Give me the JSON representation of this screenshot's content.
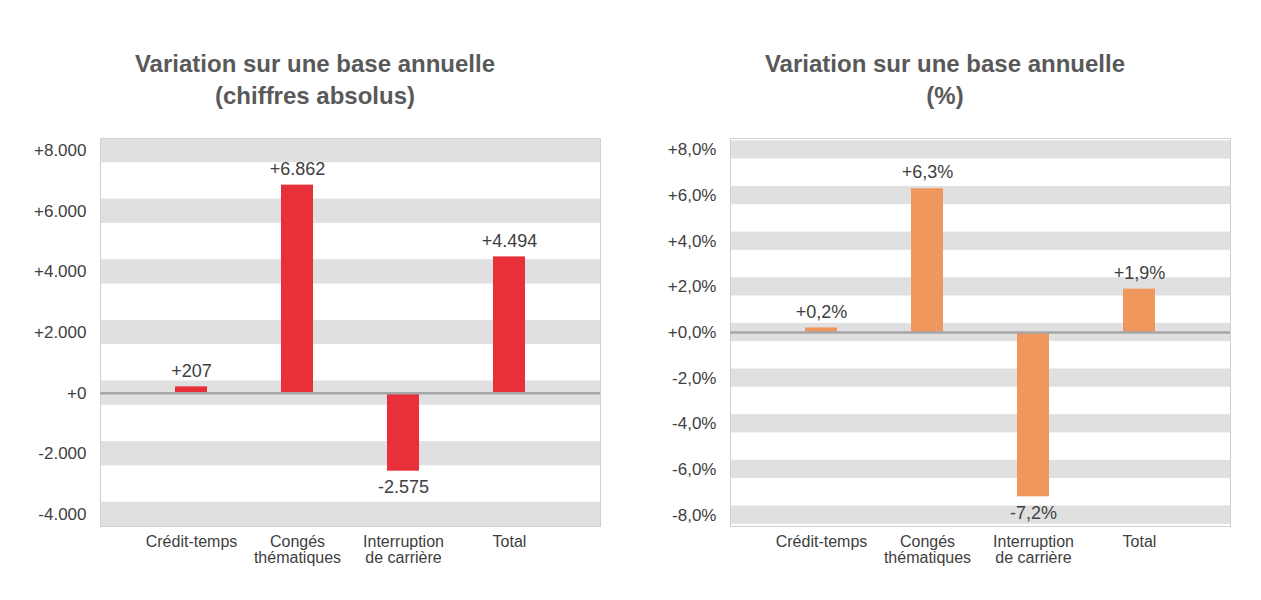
{
  "chart_data": [
    {
      "type": "bar",
      "title": "Variation sur une base annuelle",
      "subtitle": "(chiffres absolus)",
      "categories": [
        "Crédit-temps",
        "Congés thématiques",
        "Interruption de carrière",
        "Total"
      ],
      "values": [
        207,
        6862,
        -2575,
        4494
      ],
      "value_labels": [
        "+207",
        "+6.862",
        "-2.575",
        "+4.494"
      ],
      "color": "#e8303a",
      "ylim": [
        -4400,
        8400
      ],
      "yticks": [
        {
          "value": -4000,
          "label": "-4.000"
        },
        {
          "value": -2000,
          "label": "-2.000"
        },
        {
          "value": 0,
          "label": "+0"
        },
        {
          "value": 2000,
          "label": "+2.000"
        },
        {
          "value": 4000,
          "label": "+4.000"
        },
        {
          "value": 6000,
          "label": "+6.000"
        },
        {
          "value": 8000,
          "label": "+8.000"
        }
      ],
      "grid": true,
      "data_labels": true
    },
    {
      "type": "bar",
      "title": "Variation sur une base annuelle",
      "subtitle": "(%)",
      "categories": [
        "Crédit-temps",
        "Congés thématiques",
        "Interruption de carrière",
        "Total"
      ],
      "values": [
        0.2,
        6.3,
        -7.2,
        1.9
      ],
      "value_labels": [
        "+0,2%",
        "+6,3%",
        "-7,2%",
        "+1,9%"
      ],
      "color": "#f0975e",
      "ylim": [
        -8.5,
        8.5
      ],
      "yticks": [
        {
          "value": -8,
          "label": "-8,0%"
        },
        {
          "value": -6,
          "label": "-6,0%"
        },
        {
          "value": -4,
          "label": "-4,0%"
        },
        {
          "value": -2,
          "label": "-2,0%"
        },
        {
          "value": 0,
          "label": "+0,0%"
        },
        {
          "value": 2,
          "label": "+2,0%"
        },
        {
          "value": 4,
          "label": "+4,0%"
        },
        {
          "value": 6,
          "label": "+6,0%"
        },
        {
          "value": 8,
          "label": "+8,0%"
        }
      ],
      "grid": true,
      "data_labels": true
    }
  ]
}
